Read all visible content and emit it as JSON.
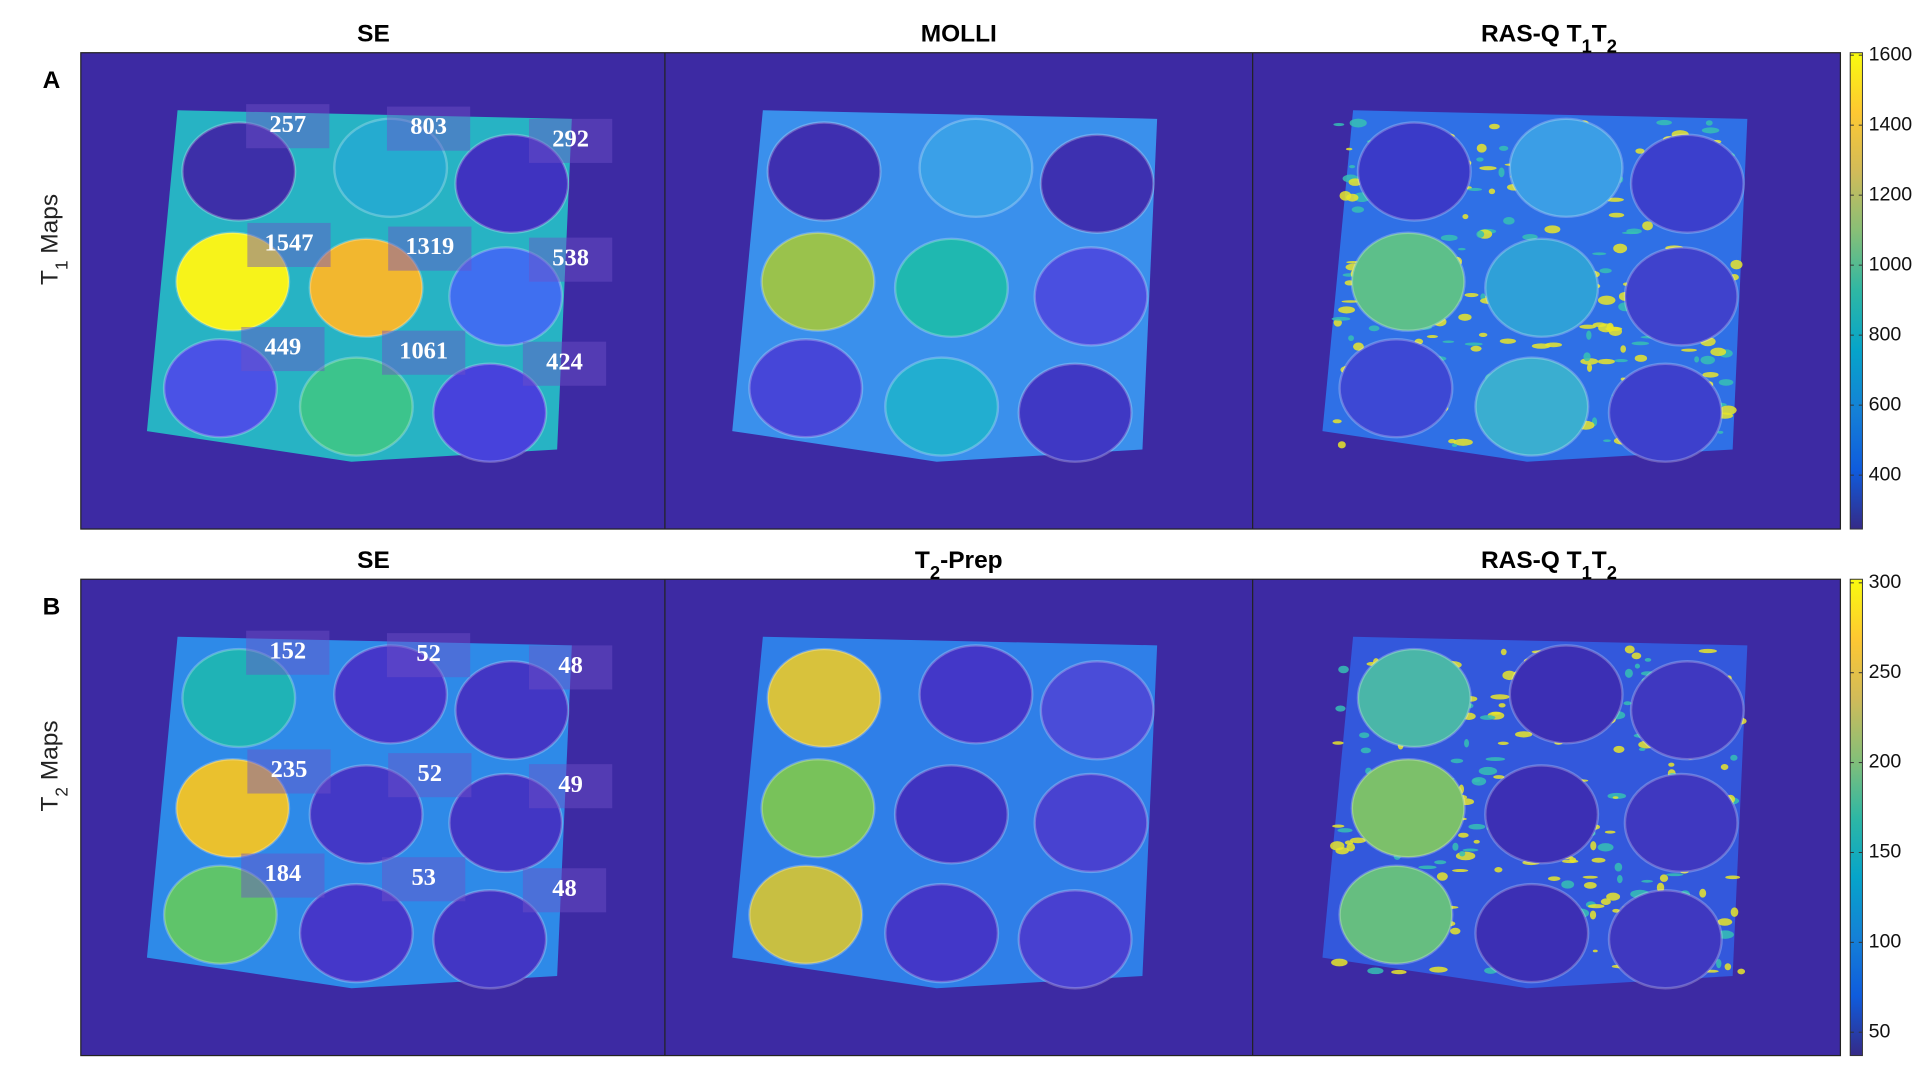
{
  "rows": [
    {
      "letter": "A",
      "ylabel": {
        "main": "T",
        "sub": "1",
        "rest": " Maps"
      },
      "titles": [
        [
          {
            "text": "SE"
          }
        ],
        [
          {
            "text": "MOLLI"
          }
        ],
        [
          {
            "text": "RAS-Q T"
          },
          {
            "sub": "1"
          },
          {
            "text": "T"
          },
          {
            "sub": "2"
          }
        ]
      ],
      "se_labels": [
        257,
        803,
        292,
        1547,
        1319,
        538,
        449,
        1061,
        424
      ],
      "colorbar": {
        "lim": [
          246,
          1607
        ],
        "ticks": [
          400,
          600,
          800,
          1000,
          1200,
          1400,
          1600
        ]
      }
    },
    {
      "letter": "B",
      "ylabel": {
        "main": "T",
        "sub": "2",
        "rest": " Maps"
      },
      "titles": [
        [
          {
            "text": "SE"
          }
        ],
        [
          {
            "text": "T"
          },
          {
            "sub": "2"
          },
          {
            "text": "-Prep"
          }
        ],
        [
          {
            "text": "RAS-Q T"
          },
          {
            "sub": "1"
          },
          {
            "text": "T"
          },
          {
            "sub": "2"
          }
        ]
      ],
      "se_labels": [
        152,
        52,
        48,
        235,
        52,
        49,
        184,
        53,
        48
      ],
      "colorbar": {
        "lim": [
          37,
          302
        ],
        "ticks": [
          50,
          100,
          150,
          200,
          250,
          300
        ]
      }
    }
  ]
}
